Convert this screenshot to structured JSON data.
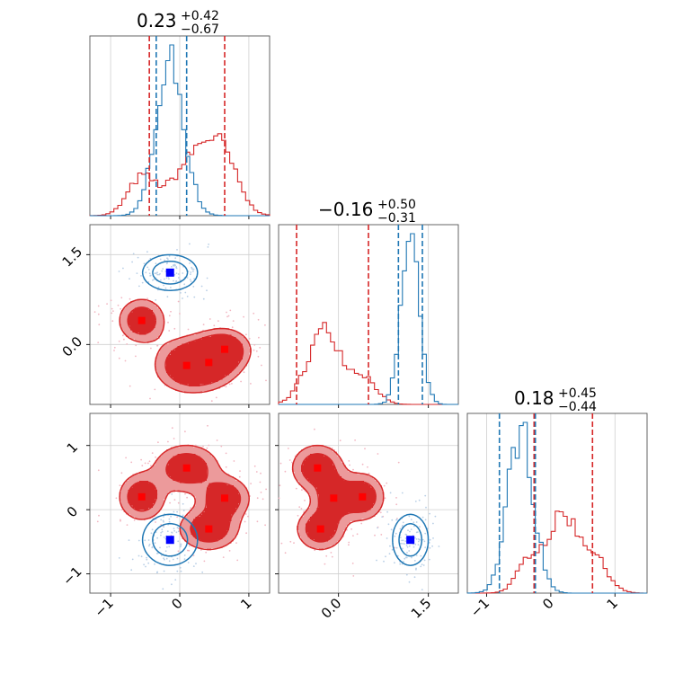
{
  "chart_data": {
    "type": "corner",
    "parameters": 3,
    "colors": {
      "red": "#d62728",
      "blue": "#1f77b4",
      "red_light": "#ec9a9b",
      "red_dark": "#d62728",
      "blue_marker": "#0000ff",
      "red_marker": "#ff0000"
    },
    "titles": [
      {
        "main": "0.23",
        "plus": "+0.42",
        "minus": "−0.67"
      },
      {
        "main": "−0.16",
        "plus": "+0.50",
        "minus": "−0.31"
      },
      {
        "main": "0.18",
        "plus": "+0.45",
        "minus": "−0.44"
      }
    ],
    "ranges": [
      [
        -1.3,
        1.3
      ],
      [
        -1.0,
        2.0
      ],
      [
        -1.3,
        1.5
      ]
    ],
    "ticks": [
      {
        "values": [
          -1,
          0,
          1
        ],
        "labels": [
          "−1",
          "0",
          "1"
        ]
      },
      {
        "values": [
          0.0,
          1.5
        ],
        "labels": [
          "0.0",
          "1.5"
        ]
      },
      {
        "values": [
          -1,
          0,
          1
        ],
        "labels": [
          "−1",
          "0",
          "1"
        ]
      }
    ],
    "quantiles": {
      "red": [
        [
          -0.44,
          0.65
        ],
        [
          -0.7,
          0.5
        ],
        [
          -0.26,
          0.65
        ]
      ],
      "blue": [
        [
          -0.34,
          0.1
        ],
        [
          1.0,
          1.4
        ],
        [
          -0.8,
          -0.24
        ]
      ]
    },
    "red_modes": [
      [
        -0.55,
        0.4,
        0.2
      ],
      [
        0.1,
        -0.35,
        0.65
      ],
      [
        0.42,
        -0.3,
        -0.3
      ],
      [
        0.65,
        -0.08,
        0.18
      ]
    ],
    "red_mode_sigma": [
      [
        0.2,
        0.22,
        0.22
      ],
      [
        0.28,
        0.26,
        0.22
      ],
      [
        0.26,
        0.24,
        0.2
      ],
      [
        0.22,
        0.2,
        0.2
      ]
    ],
    "blue_mode": [
      -0.14,
      1.2,
      -0.47
    ],
    "blue_sigma": [
      0.2,
      0.15,
      0.2
    ]
  }
}
